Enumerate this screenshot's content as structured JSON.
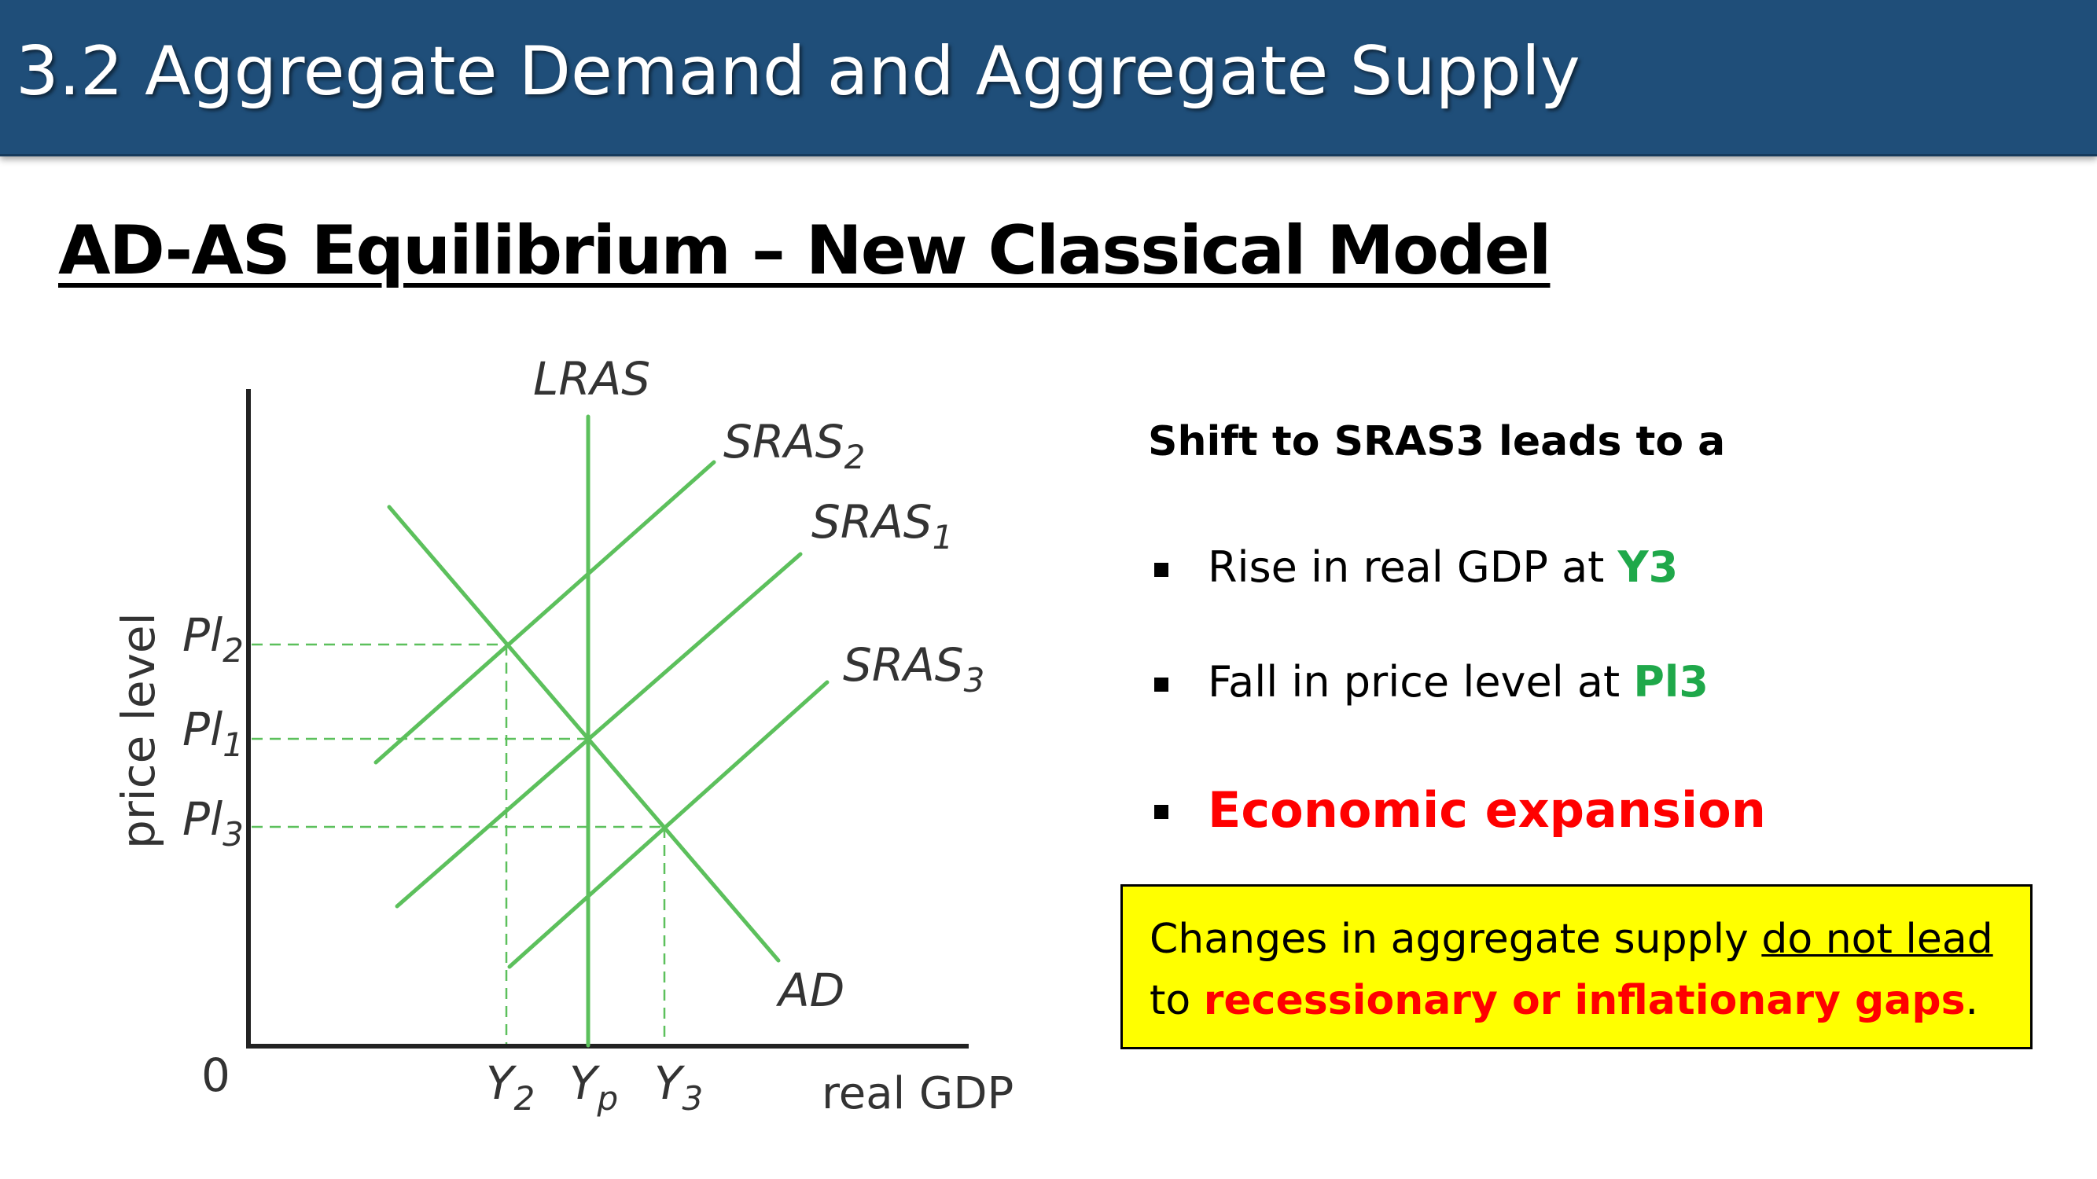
{
  "header": {
    "title": "3.2 Aggregate Demand and Aggregate Supply"
  },
  "slide": {
    "title": "AD-AS Equilibrium – New Classical Model"
  },
  "diagram": {
    "origin_label": "0",
    "x_axis_label": "real GDP",
    "y_axis_label": "price level",
    "curves": {
      "lras": "LRAS",
      "sras2": {
        "base": "SRAS",
        "sub": "2"
      },
      "sras1": {
        "base": "SRAS",
        "sub": "1"
      },
      "sras3": {
        "base": "SRAS",
        "sub": "3"
      },
      "ad": "AD"
    },
    "y_ticks": [
      {
        "base": "Pl",
        "sub": "2"
      },
      {
        "base": "Pl",
        "sub": "1"
      },
      {
        "base": "Pl",
        "sub": "3"
      }
    ],
    "x_ticks": [
      {
        "base": "Y",
        "sub": "2"
      },
      {
        "base": "Y",
        "sub": "p"
      },
      {
        "base": "Y",
        "sub": "3"
      }
    ],
    "line_color": "#5cc05c"
  },
  "text_panel": {
    "heading": "Shift to SRAS3 leads to a",
    "bullets": [
      {
        "prefix": "Rise in real GDP at ",
        "highlight": "Y3"
      },
      {
        "prefix": "Fall in price level at ",
        "highlight": "Pl3"
      },
      {
        "text": "Economic expansion"
      }
    ],
    "accent_color": "#1fa84a",
    "emphasis_color": "#ff0000"
  },
  "callout": {
    "text_before": "Changes in aggregate supply ",
    "underlined": "do not lead",
    "line2_before": "to ",
    "highlight": "recessionary or inflationary gaps",
    "text_after": ".",
    "background": "#ffff00"
  }
}
